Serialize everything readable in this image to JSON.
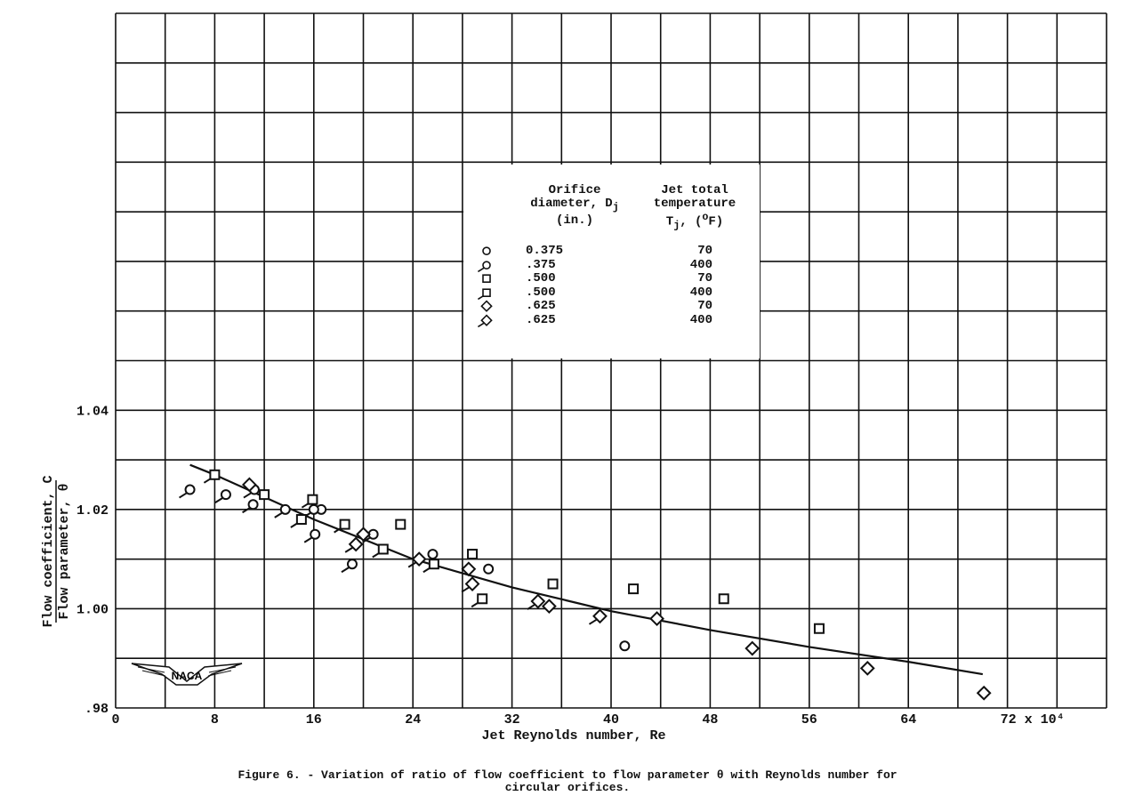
{
  "chart_data": {
    "type": "scatter",
    "xlabel": "Jet Reynolds number, Re",
    "ylabel_numerator": "Flow coefficient, C",
    "ylabel_denominator": "Flow parameter, θ",
    "x_tick_labels": [
      "0",
      "8",
      "16",
      "24",
      "32",
      "40",
      "48",
      "56",
      "64",
      "72 x 10⁴"
    ],
    "x_ticks": [
      0,
      8,
      16,
      24,
      32,
      40,
      48,
      56,
      64,
      72
    ],
    "y_tick_labels": [
      ".98",
      "1.00",
      "1.02",
      "1.04"
    ],
    "y_ticks": [
      0.98,
      1.0,
      1.02,
      1.04
    ],
    "xlim": [
      0,
      80
    ],
    "ylim": [
      0.98,
      1.12
    ],
    "grid": true,
    "legend_placement": "center",
    "legend": {
      "col1_header": [
        "Orifice",
        "diameter, D",
        "(in.)"
      ],
      "col1_sub": "j",
      "col2_header": [
        "Jet total",
        "temperature",
        "T",
        "j",
        ", (",
        "o",
        "F)"
      ],
      "entries": [
        {
          "marker": "circle",
          "tail": false,
          "diameter": "0.375",
          "temperature": "70"
        },
        {
          "marker": "circle",
          "tail": true,
          "diameter": ".375",
          "temperature": "400"
        },
        {
          "marker": "square",
          "tail": false,
          "diameter": ".500",
          "temperature": "70"
        },
        {
          "marker": "square",
          "tail": true,
          "diameter": ".500",
          "temperature": "400"
        },
        {
          "marker": "diamond",
          "tail": false,
          "diameter": ".625",
          "temperature": "70"
        },
        {
          "marker": "diamond",
          "tail": true,
          "diameter": ".625",
          "temperature": "400"
        }
      ]
    },
    "series": [
      {
        "marker": "circle",
        "tail": false,
        "points": [
          [
            16.6,
            1.02
          ],
          [
            25.6,
            1.011
          ],
          [
            30.1,
            1.008
          ],
          [
            41.1,
            0.9925
          ]
        ]
      },
      {
        "marker": "circle",
        "tail": true,
        "points": [
          [
            6.0,
            1.024
          ],
          [
            8.9,
            1.023
          ],
          [
            11.2,
            1.024
          ],
          [
            11.1,
            1.021
          ],
          [
            13.7,
            1.02
          ],
          [
            16.0,
            1.02
          ],
          [
            16.1,
            1.015
          ],
          [
            19.1,
            1.009
          ],
          [
            20.8,
            1.015
          ]
        ]
      },
      {
        "marker": "square",
        "tail": false,
        "points": [
          [
            12.0,
            1.023
          ],
          [
            23.0,
            1.017
          ],
          [
            28.8,
            1.011
          ],
          [
            35.3,
            1.005
          ],
          [
            41.8,
            1.004
          ],
          [
            49.1,
            1.002
          ],
          [
            56.8,
            0.996
          ]
        ]
      },
      {
        "marker": "square",
        "tail": true,
        "points": [
          [
            8.0,
            1.027
          ],
          [
            15.9,
            1.022
          ],
          [
            15.0,
            1.018
          ],
          [
            18.5,
            1.017
          ],
          [
            21.6,
            1.012
          ],
          [
            25.7,
            1.009
          ],
          [
            29.6,
            1.002
          ]
        ]
      },
      {
        "marker": "diamond",
        "tail": false,
        "points": [
          [
            10.8,
            1.025
          ],
          [
            20.0,
            1.015
          ],
          [
            28.5,
            1.008
          ],
          [
            35.0,
            1.0005
          ],
          [
            43.7,
            0.998
          ],
          [
            51.4,
            0.992
          ],
          [
            60.7,
            0.988
          ],
          [
            70.1,
            0.983
          ]
        ]
      },
      {
        "marker": "diamond",
        "tail": true,
        "points": [
          [
            19.4,
            1.013
          ],
          [
            24.5,
            1.01
          ],
          [
            28.8,
            1.005
          ],
          [
            34.1,
            1.0015
          ],
          [
            39.1,
            0.9985
          ]
        ]
      }
    ],
    "fit_curve": [
      [
        6,
        1.029
      ],
      [
        8,
        1.027
      ],
      [
        16,
        1.018
      ],
      [
        24,
        1.01
      ],
      [
        32,
        1.0043
      ],
      [
        40,
        0.9995
      ],
      [
        48,
        0.9957
      ],
      [
        56,
        0.9923
      ],
      [
        64,
        0.9893
      ],
      [
        70,
        0.9868
      ]
    ]
  },
  "logo_text": "NACA",
  "caption": {
    "line1": "Figure 6. - Variation of ratio of flow coefficient to flow parameter  θ  with Reynolds number for",
    "line2": "circular orifices."
  },
  "colors": {
    "ink": "#111111",
    "paper": "#ffffff"
  }
}
